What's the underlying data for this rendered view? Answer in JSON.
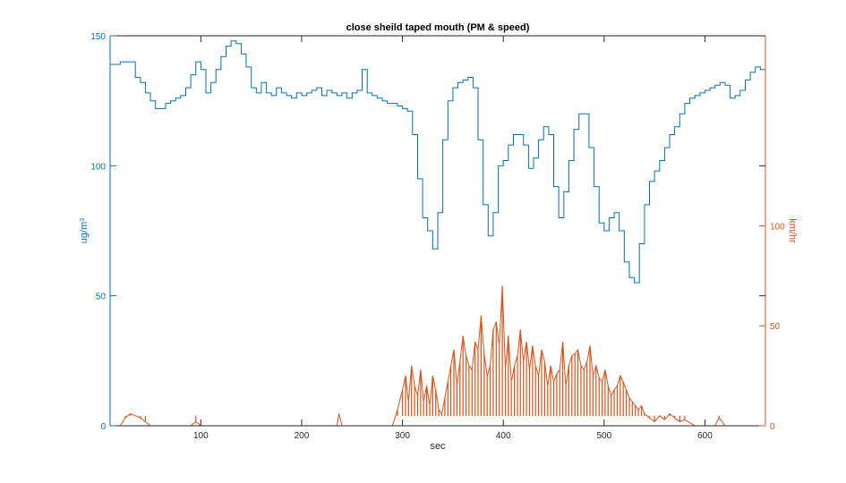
{
  "chart_data": {
    "type": "line",
    "title": "close sheild taped mouth (PM & speed)",
    "xlabel": "sec",
    "ylabel_left": "ug/m",
    "ylabel_left_sup": "3",
    "ylabel_right": "km/hr",
    "xlim": [
      10,
      660
    ],
    "ylim_left": [
      0,
      150
    ],
    "ylim_right": [
      0,
      195
    ],
    "x_ticks": [
      100,
      200,
      300,
      400,
      500,
      600
    ],
    "x_tick_labels": [
      "100",
      "200",
      "300",
      "400",
      "500",
      "600"
    ],
    "y_left_ticks": [
      0,
      50,
      100,
      150
    ],
    "y_left_tick_labels": [
      "0",
      "50",
      "100",
      "150"
    ],
    "y_right_ticks": [
      0,
      50,
      100
    ],
    "y_right_tick_labels": [
      "0",
      "50",
      "100"
    ],
    "left_color": "#0072BD",
    "right_color": "#D95319",
    "series": [
      {
        "name": "PM",
        "axis": "left",
        "color": "#0072BD",
        "x": [
          10,
          15,
          20,
          25,
          30,
          35,
          40,
          45,
          50,
          55,
          60,
          65,
          70,
          75,
          80,
          85,
          90,
          95,
          100,
          105,
          110,
          115,
          120,
          125,
          130,
          135,
          140,
          145,
          150,
          155,
          160,
          165,
          170,
          175,
          180,
          185,
          190,
          195,
          200,
          205,
          210,
          215,
          220,
          225,
          230,
          235,
          240,
          245,
          250,
          255,
          260,
          265,
          270,
          275,
          280,
          285,
          290,
          295,
          300,
          305,
          310,
          315,
          320,
          325,
          330,
          335,
          340,
          345,
          350,
          355,
          360,
          365,
          370,
          375,
          380,
          385,
          390,
          395,
          400,
          405,
          410,
          415,
          420,
          425,
          430,
          435,
          440,
          445,
          450,
          455,
          460,
          465,
          470,
          475,
          480,
          485,
          490,
          495,
          500,
          505,
          510,
          515,
          520,
          525,
          530,
          535,
          540,
          545,
          550,
          555,
          560,
          565,
          570,
          575,
          580,
          585,
          590,
          595,
          600,
          605,
          610,
          615,
          620,
          625,
          630,
          635,
          640,
          645,
          650,
          655,
          660
        ],
        "values": [
          139,
          139,
          140,
          140,
          140,
          134,
          132,
          128,
          125,
          122,
          122,
          124,
          125,
          126,
          127,
          130,
          135,
          140,
          137,
          128,
          132,
          137,
          142,
          146,
          148,
          147,
          143,
          138,
          130,
          128,
          132,
          128,
          127,
          130,
          128,
          127,
          126,
          128,
          127,
          128,
          129,
          130,
          127,
          129,
          128,
          127,
          128,
          126,
          128,
          129,
          137,
          128,
          127,
          126,
          125,
          124,
          124,
          123,
          122,
          121,
          112,
          95,
          80,
          75,
          68,
          82,
          110,
          125,
          130,
          132,
          133,
          134,
          130,
          110,
          85,
          73,
          82,
          100,
          102,
          108,
          112,
          112,
          108,
          99,
          103,
          110,
          115,
          112,
          92,
          80,
          90,
          102,
          114,
          120,
          120,
          107,
          92,
          78,
          75,
          80,
          82,
          75,
          63,
          57,
          55,
          70,
          85,
          94,
          98,
          102,
          107,
          112,
          115,
          120,
          124,
          126,
          127,
          128,
          129,
          130,
          131,
          132,
          131,
          126,
          127,
          129,
          133,
          136,
          138,
          137,
          135
        ]
      },
      {
        "name": "speed",
        "axis": "right",
        "color": "#D95319",
        "x": [
          10,
          20,
          25,
          30,
          35,
          40,
          45,
          50,
          60,
          70,
          80,
          90,
          95,
          100,
          110,
          120,
          140,
          160,
          180,
          200,
          220,
          235,
          237,
          240,
          260,
          280,
          290,
          295,
          300,
          303,
          306,
          309,
          312,
          315,
          318,
          321,
          324,
          327,
          330,
          333,
          336,
          339,
          342,
          345,
          348,
          351,
          354,
          357,
          360,
          363,
          366,
          369,
          372,
          375,
          378,
          381,
          384,
          387,
          390,
          393,
          396,
          399,
          402,
          405,
          408,
          411,
          414,
          417,
          420,
          423,
          426,
          429,
          432,
          435,
          438,
          441,
          444,
          447,
          450,
          453,
          456,
          459,
          462,
          465,
          468,
          471,
          474,
          477,
          480,
          483,
          486,
          489,
          492,
          495,
          498,
          501,
          504,
          507,
          510,
          513,
          516,
          519,
          522,
          525,
          528,
          531,
          534,
          537,
          540,
          545,
          550,
          555,
          560,
          565,
          570,
          575,
          580,
          590,
          600,
          610,
          614,
          620,
          640,
          660
        ],
        "values": [
          0,
          0,
          4,
          6,
          5,
          4,
          2,
          0,
          0,
          0,
          0,
          0,
          2,
          0,
          0,
          0,
          0,
          0,
          0,
          0,
          0,
          0,
          6,
          0,
          0,
          0,
          0,
          8,
          18,
          25,
          12,
          30,
          20,
          15,
          28,
          12,
          20,
          10,
          25,
          18,
          8,
          6,
          14,
          22,
          30,
          38,
          20,
          32,
          45,
          35,
          30,
          28,
          42,
          38,
          55,
          36,
          25,
          30,
          48,
          52,
          40,
          70,
          28,
          45,
          22,
          30,
          35,
          48,
          32,
          42,
          28,
          40,
          30,
          25,
          38,
          32,
          20,
          30,
          22,
          26,
          28,
          42,
          20,
          30,
          35,
          36,
          38,
          30,
          28,
          32,
          40,
          25,
          30,
          24,
          22,
          28,
          20,
          15,
          18,
          20,
          25,
          22,
          18,
          14,
          12,
          10,
          8,
          10,
          6,
          4,
          2,
          5,
          3,
          6,
          4,
          2,
          3,
          0,
          0,
          0,
          4,
          0,
          0,
          0
        ]
      }
    ]
  }
}
